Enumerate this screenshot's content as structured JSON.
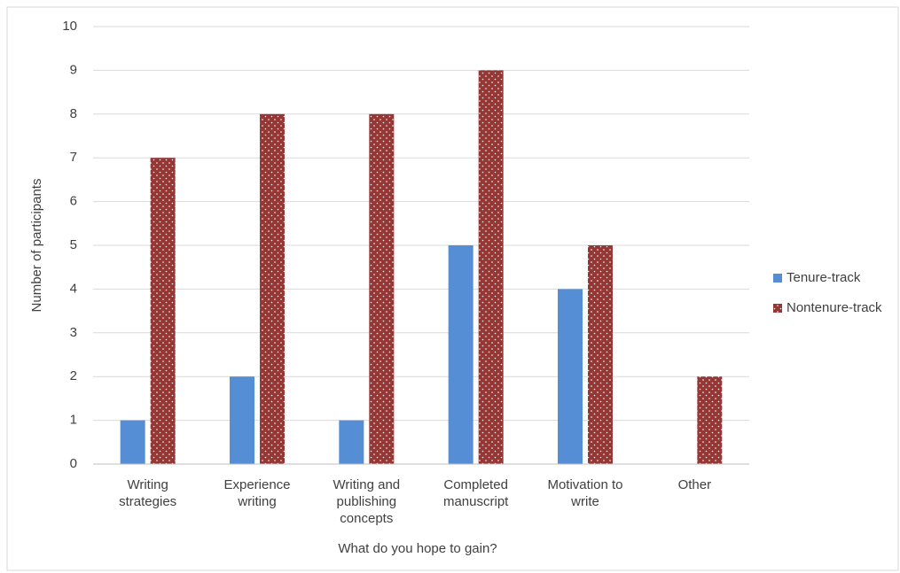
{
  "chart_data": {
    "type": "bar",
    "x_label": "What do you hope to gain?",
    "y_label": "Number of participants",
    "categories": [
      "Writing strategies",
      "Experience writing",
      "Writing and publishing concepts",
      "Completed manuscript",
      "Motivation to write",
      "Other"
    ],
    "series": [
      {
        "name": "Tenure-track",
        "color": "#558ed5",
        "values": [
          1,
          2,
          1,
          5,
          4,
          0
        ]
      },
      {
        "name": "Nontenure-track",
        "color": "#953735",
        "pattern": "dots",
        "values": [
          7,
          8,
          8,
          9,
          5,
          2
        ]
      }
    ],
    "ylim": [
      0,
      10
    ],
    "yticks": [
      0,
      1,
      2,
      3,
      4,
      5,
      6,
      7,
      8,
      9,
      10
    ],
    "grid": true,
    "legend": "right"
  }
}
